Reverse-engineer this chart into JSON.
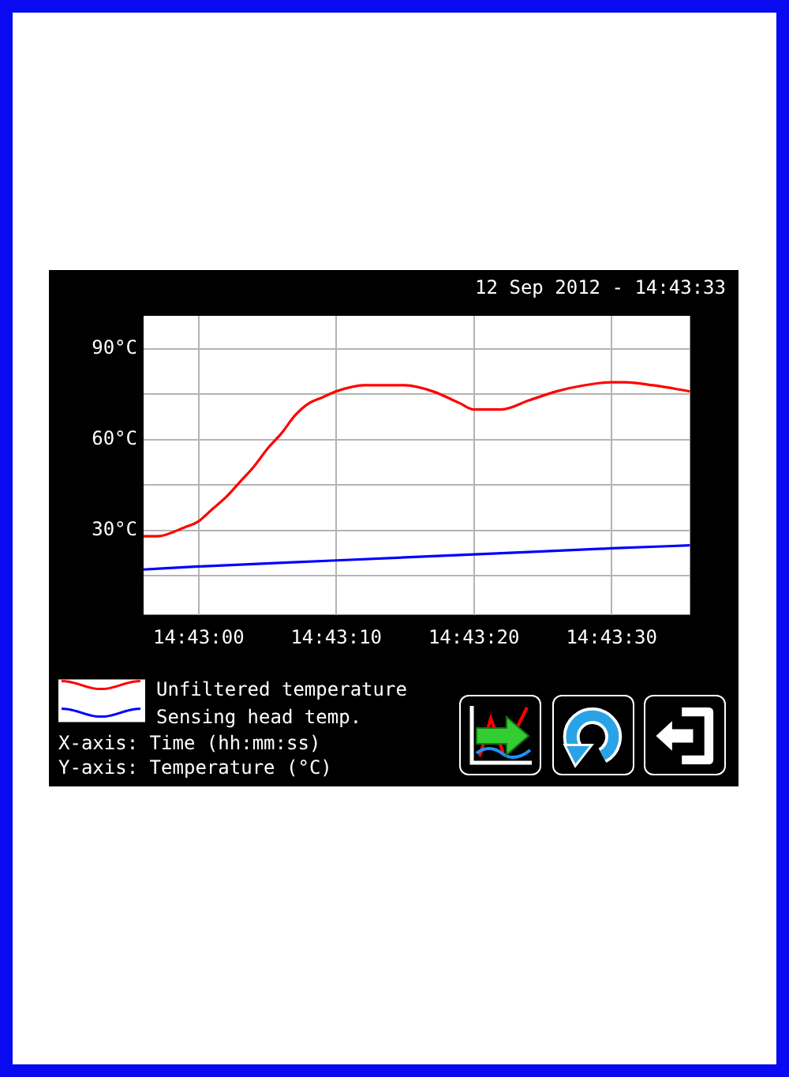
{
  "chart_data": {
    "type": "line",
    "title": "12 Sep 2012 - 14:43:33",
    "annotations": [
      "X-axis: Time (hh:mm:ss)",
      "Y-axis: Temperature (°C)"
    ],
    "series": [
      {
        "name": "Unfiltered temperature",
        "color": "#ff0000",
        "x": [
          14.715556,
          14.715833,
          14.716389,
          14.716667,
          14.716944,
          14.717222,
          14.7175,
          14.717778,
          14.718056,
          14.718333,
          14.718611,
          14.718889,
          14.719167,
          14.719444,
          14.72,
          14.720833,
          14.721389,
          14.721944,
          14.722222,
          14.722778,
          14.723333,
          14.723889,
          14.724444,
          14.725,
          14.725278,
          14.725833,
          14.726583
        ],
        "values": [
          28,
          28,
          31,
          33,
          37,
          41,
          46,
          51,
          57,
          62,
          68,
          72,
          74,
          76,
          78,
          78,
          76,
          72,
          70,
          70,
          73,
          76,
          78,
          79,
          79,
          78,
          76
        ]
      },
      {
        "name": "Sensing head temp.",
        "color": "#0000ff",
        "x": [
          14.715556,
          14.716667,
          14.719444,
          14.722222,
          14.725,
          14.726583
        ],
        "values": [
          17,
          18,
          20,
          22,
          24,
          25
        ]
      }
    ],
    "xlim": [
      14.715556,
      14.726583
    ],
    "xticks": [
      {
        "value": 14.716667,
        "label": "14:43:00"
      },
      {
        "value": 14.719444,
        "label": "14:43:10"
      },
      {
        "value": 14.722222,
        "label": "14:43:20"
      },
      {
        "value": 14.725,
        "label": "14:43:30"
      }
    ],
    "ylim": [
      2,
      101
    ],
    "yticks": [
      {
        "value": 15,
        "label": null
      },
      {
        "value": 30,
        "label": "30°C"
      },
      {
        "value": 45,
        "label": null
      },
      {
        "value": 60,
        "label": "60°C"
      },
      {
        "value": 75,
        "label": null
      },
      {
        "value": 90,
        "label": "90°C"
      }
    ],
    "grid": true,
    "legend": "bottom left",
    "marker": "none",
    "line_style": "solid"
  }
}
